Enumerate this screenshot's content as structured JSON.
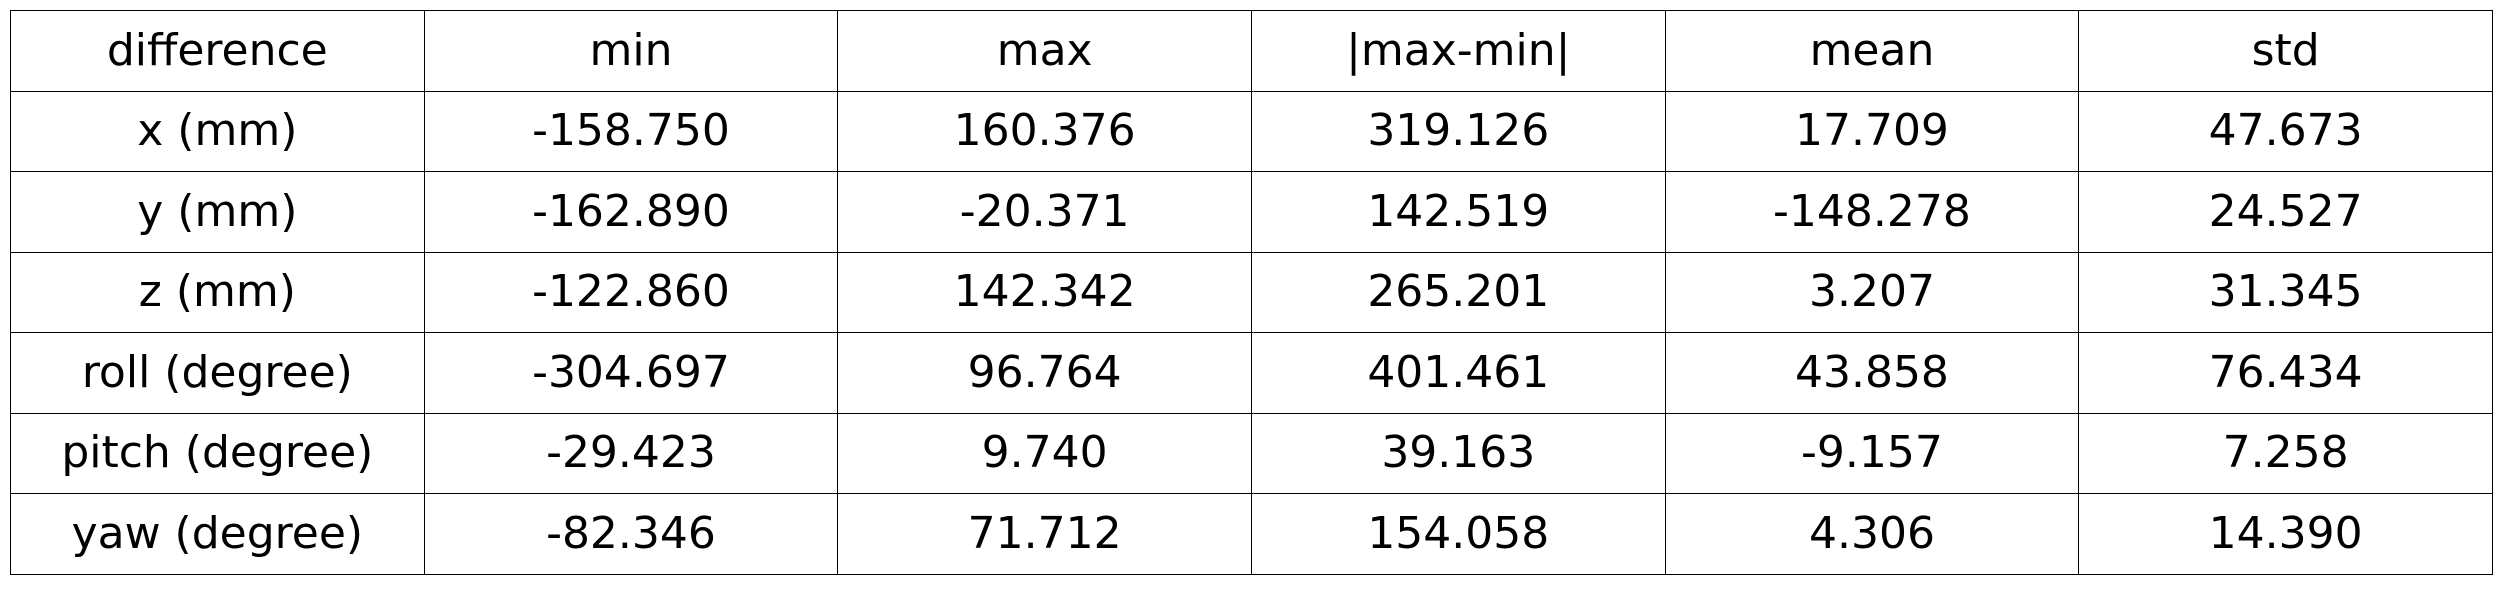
{
  "chart_data": {
    "type": "table",
    "columns": [
      "difference",
      "min",
      "max",
      "|max-min|",
      "mean",
      "std"
    ],
    "rows": [
      {
        "label": "x (mm)",
        "values": [
          "-158.750",
          "160.376",
          "319.126",
          "17.709",
          "47.673"
        ]
      },
      {
        "label": "y (mm)",
        "values": [
          "-162.890",
          "-20.371",
          "142.519",
          "-148.278",
          "24.527"
        ]
      },
      {
        "label": "z (mm)",
        "values": [
          "-122.860",
          "142.342",
          "265.201",
          "3.207",
          "31.345"
        ]
      },
      {
        "label": "roll (degree)",
        "values": [
          "-304.697",
          "96.764",
          "401.461",
          "43.858",
          "76.434"
        ]
      },
      {
        "label": "pitch (degree)",
        "values": [
          "-29.423",
          "9.740",
          "39.163",
          "-9.157",
          "7.258"
        ]
      },
      {
        "label": "yaw (degree)",
        "values": [
          "-82.346",
          "71.712",
          "154.058",
          "4.306",
          "14.390"
        ]
      }
    ]
  }
}
